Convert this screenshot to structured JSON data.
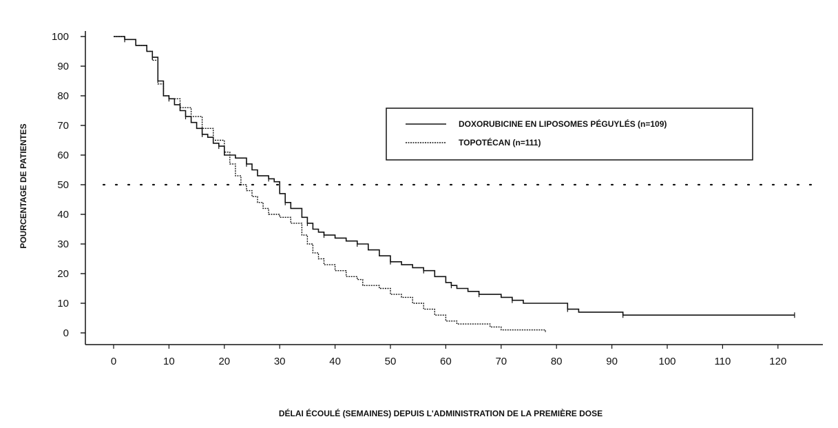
{
  "chart_data": {
    "type": "line",
    "title": "",
    "xlabel": "DÉLAI ÉCOULÉ (SEMAINES) DEPUIS L'ADMINISTRATION DE LA PREMIÈRE DOSE",
    "ylabel": "POURCENTAGE DE PATIENTES",
    "xlim": [
      0,
      124
    ],
    "ylim": [
      0,
      100
    ],
    "x_ticks": [
      0,
      10,
      20,
      30,
      40,
      50,
      60,
      70,
      80,
      90,
      100,
      110,
      120
    ],
    "y_ticks": [
      0,
      10,
      20,
      30,
      40,
      50,
      60,
      70,
      80,
      90,
      100
    ],
    "grid": false,
    "legend_position": "top-right",
    "reference_line": {
      "y": 50,
      "style": "dotted"
    },
    "colors": {
      "line": "#111111",
      "background": "#ffffff"
    },
    "series": [
      {
        "name": "DOXORUBICINE EN LIPOSOMES PÉGUYLÉS (n=109)",
        "style": "solid",
        "points": [
          [
            0,
            100
          ],
          [
            2,
            99
          ],
          [
            4,
            97
          ],
          [
            6,
            95
          ],
          [
            7,
            93
          ],
          [
            8,
            85
          ],
          [
            9,
            80
          ],
          [
            10,
            79
          ],
          [
            11,
            77
          ],
          [
            12,
            75
          ],
          [
            13,
            73
          ],
          [
            14,
            71
          ],
          [
            15,
            69
          ],
          [
            16,
            67
          ],
          [
            17,
            66
          ],
          [
            18,
            64
          ],
          [
            19,
            63
          ],
          [
            20,
            60
          ],
          [
            22,
            59
          ],
          [
            24,
            57
          ],
          [
            25,
            55
          ],
          [
            26,
            53
          ],
          [
            28,
            52
          ],
          [
            29,
            51
          ],
          [
            30,
            47
          ],
          [
            31,
            44
          ],
          [
            32,
            42
          ],
          [
            34,
            39
          ],
          [
            35,
            37
          ],
          [
            36,
            35
          ],
          [
            37,
            34
          ],
          [
            38,
            33
          ],
          [
            40,
            32
          ],
          [
            42,
            31
          ],
          [
            44,
            30
          ],
          [
            46,
            28
          ],
          [
            48,
            26
          ],
          [
            50,
            24
          ],
          [
            52,
            23
          ],
          [
            54,
            22
          ],
          [
            56,
            21
          ],
          [
            58,
            19
          ],
          [
            60,
            17
          ],
          [
            61,
            16
          ],
          [
            62,
            15
          ],
          [
            64,
            14
          ],
          [
            66,
            13
          ],
          [
            68,
            13
          ],
          [
            70,
            12
          ],
          [
            72,
            11
          ],
          [
            74,
            10
          ],
          [
            80,
            10
          ],
          [
            82,
            8
          ],
          [
            84,
            7
          ],
          [
            90,
            7
          ],
          [
            92,
            6
          ],
          [
            100,
            6
          ],
          [
            110,
            6
          ],
          [
            123,
            6
          ]
        ]
      },
      {
        "name": "TOPOTÉCAN (n=111)",
        "style": "dotted",
        "points": [
          [
            0,
            100
          ],
          [
            2,
            99
          ],
          [
            4,
            97
          ],
          [
            6,
            95
          ],
          [
            7,
            92
          ],
          [
            8,
            84
          ],
          [
            9,
            80
          ],
          [
            10,
            79
          ],
          [
            12,
            76
          ],
          [
            14,
            73
          ],
          [
            16,
            69
          ],
          [
            18,
            65
          ],
          [
            20,
            61
          ],
          [
            21,
            57
          ],
          [
            22,
            53
          ],
          [
            23,
            50
          ],
          [
            24,
            48
          ],
          [
            25,
            46
          ],
          [
            26,
            44
          ],
          [
            27,
            42
          ],
          [
            28,
            40
          ],
          [
            30,
            39
          ],
          [
            32,
            37
          ],
          [
            34,
            33
          ],
          [
            35,
            30
          ],
          [
            36,
            27
          ],
          [
            37,
            25
          ],
          [
            38,
            23
          ],
          [
            40,
            21
          ],
          [
            42,
            19
          ],
          [
            44,
            18
          ],
          [
            45,
            16
          ],
          [
            48,
            15
          ],
          [
            50,
            13
          ],
          [
            52,
            12
          ],
          [
            54,
            10
          ],
          [
            56,
            8
          ],
          [
            58,
            6
          ],
          [
            60,
            4
          ],
          [
            62,
            3
          ],
          [
            65,
            3
          ],
          [
            68,
            2
          ],
          [
            70,
            1
          ],
          [
            74,
            1
          ],
          [
            78,
            0
          ]
        ]
      }
    ]
  }
}
